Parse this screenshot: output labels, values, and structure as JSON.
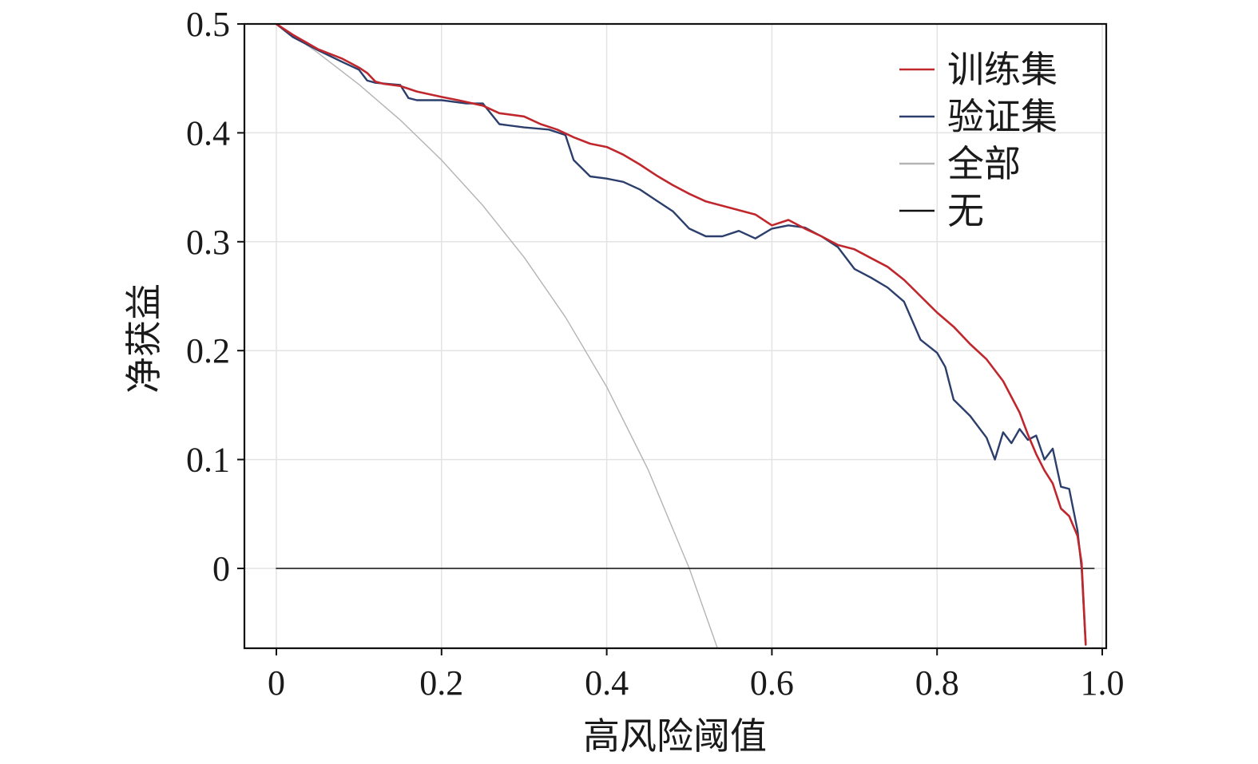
{
  "chart_data": {
    "type": "line",
    "title": "",
    "xlabel": "高风险阈值",
    "ylabel": "净获益",
    "xlim": [
      -0.04,
      1.0
    ],
    "ylim": [
      -0.07,
      0.5
    ],
    "x_ticks": [
      0,
      0.2,
      0.4,
      0.6,
      0.8,
      1.0
    ],
    "x_tick_labels": [
      "0",
      "0.2",
      "0.4",
      "0.6",
      "0.8",
      "1.0"
    ],
    "y_ticks": [
      0,
      0.1,
      0.2,
      0.3,
      0.4,
      0.5
    ],
    "y_tick_labels": [
      "0",
      "0.1",
      "0.2",
      "0.3",
      "0.4",
      "0.5"
    ],
    "grid": true,
    "legend_position": "top-right",
    "series": [
      {
        "name": "训练集",
        "color": "#c0272d",
        "x": [
          0.0,
          0.02,
          0.05,
          0.08,
          0.1,
          0.11,
          0.12,
          0.13,
          0.15,
          0.17,
          0.2,
          0.22,
          0.25,
          0.27,
          0.3,
          0.32,
          0.34,
          0.36,
          0.38,
          0.4,
          0.42,
          0.44,
          0.46,
          0.48,
          0.5,
          0.52,
          0.55,
          0.58,
          0.6,
          0.62,
          0.64,
          0.66,
          0.68,
          0.7,
          0.72,
          0.74,
          0.76,
          0.78,
          0.8,
          0.82,
          0.84,
          0.86,
          0.88,
          0.9,
          0.91,
          0.92,
          0.93,
          0.94,
          0.95,
          0.96,
          0.97,
          0.975,
          0.98
        ],
        "y": [
          0.5,
          0.49,
          0.477,
          0.468,
          0.46,
          0.455,
          0.447,
          0.445,
          0.443,
          0.438,
          0.433,
          0.43,
          0.425,
          0.418,
          0.415,
          0.408,
          0.403,
          0.396,
          0.39,
          0.387,
          0.38,
          0.371,
          0.361,
          0.352,
          0.344,
          0.337,
          0.331,
          0.325,
          0.315,
          0.32,
          0.312,
          0.305,
          0.297,
          0.293,
          0.285,
          0.277,
          0.265,
          0.25,
          0.235,
          0.222,
          0.206,
          0.192,
          0.172,
          0.143,
          0.123,
          0.105,
          0.09,
          0.078,
          0.055,
          0.048,
          0.03,
          0.005,
          -0.07
        ]
      },
      {
        "name": "验证集",
        "color": "#2c3e6b",
        "x": [
          0.0,
          0.02,
          0.05,
          0.08,
          0.1,
          0.11,
          0.12,
          0.15,
          0.16,
          0.17,
          0.2,
          0.23,
          0.25,
          0.27,
          0.3,
          0.33,
          0.35,
          0.36,
          0.38,
          0.4,
          0.42,
          0.44,
          0.46,
          0.48,
          0.5,
          0.52,
          0.54,
          0.56,
          0.58,
          0.6,
          0.62,
          0.64,
          0.66,
          0.68,
          0.7,
          0.72,
          0.74,
          0.76,
          0.78,
          0.8,
          0.81,
          0.82,
          0.84,
          0.86,
          0.87,
          0.88,
          0.89,
          0.9,
          0.91,
          0.92,
          0.93,
          0.94,
          0.95,
          0.96,
          0.97,
          0.975,
          0.98
        ],
        "y": [
          0.5,
          0.488,
          0.476,
          0.465,
          0.458,
          0.448,
          0.446,
          0.444,
          0.432,
          0.43,
          0.43,
          0.427,
          0.427,
          0.408,
          0.405,
          0.403,
          0.398,
          0.375,
          0.36,
          0.358,
          0.355,
          0.348,
          0.338,
          0.328,
          0.312,
          0.305,
          0.305,
          0.31,
          0.303,
          0.312,
          0.315,
          0.313,
          0.305,
          0.295,
          0.275,
          0.267,
          0.258,
          0.245,
          0.21,
          0.198,
          0.185,
          0.155,
          0.14,
          0.12,
          0.1,
          0.125,
          0.115,
          0.128,
          0.118,
          0.122,
          0.1,
          0.11,
          0.075,
          0.073,
          0.035,
          0.0,
          -0.07
        ]
      },
      {
        "name": "全部",
        "color": "#b4b4b4",
        "x": [
          0.0,
          0.05,
          0.1,
          0.15,
          0.2,
          0.25,
          0.3,
          0.35,
          0.4,
          0.45,
          0.5,
          0.535
        ],
        "y": [
          0.5,
          0.4737,
          0.4444,
          0.4118,
          0.375,
          0.3333,
          0.2857,
          0.2308,
          0.1667,
          0.0909,
          0.0,
          -0.0753
        ]
      },
      {
        "name": "无",
        "color": "#111111",
        "x": [
          0.0,
          0.99
        ],
        "y": [
          0.0,
          0.0
        ]
      }
    ]
  }
}
